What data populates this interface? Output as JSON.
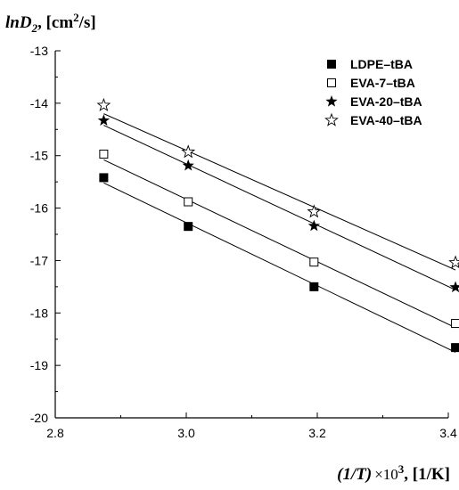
{
  "chart_data": {
    "type": "scatter",
    "ylabel": {
      "base": "lnD",
      "sub": "2",
      "sep": ", [cm",
      "sup": "2",
      "end": "/s]"
    },
    "xlabel": {
      "italic": "(1/T)",
      "times": "×10",
      "sup": "3",
      "end": ", [1/K]"
    },
    "xlim": [
      2.8,
      3.4
    ],
    "ylim": [
      -20,
      -13
    ],
    "x_ticks": [
      "2.8",
      "3.0",
      "3.2",
      "3.4"
    ],
    "y_ticks": [
      "-13",
      "-14",
      "-15",
      "-16",
      "-17",
      "-18",
      "-19",
      "-20"
    ],
    "legend_position": "top-right",
    "series": [
      {
        "name": "LDPE–tBA",
        "marker": "square-filled",
        "x": [
          2.874,
          3.003,
          3.195,
          3.411
        ],
        "y": [
          -15.42,
          -16.35,
          -17.5,
          -18.66
        ],
        "fit": {
          "x": [
            2.874,
            3.411
          ],
          "y": [
            -15.52,
            -18.75
          ]
        }
      },
      {
        "name": "EVA-7–tBA",
        "marker": "square-open",
        "x": [
          2.874,
          3.003,
          3.195,
          3.411
        ],
        "y": [
          -14.97,
          -15.88,
          -17.03,
          -18.2
        ],
        "fit": {
          "x": [
            2.874,
            3.411
          ],
          "y": [
            -15.08,
            -18.28
          ]
        }
      },
      {
        "name": "EVA-20–tBA",
        "marker": "star-filled",
        "x": [
          2.874,
          3.003,
          3.195,
          3.411
        ],
        "y": [
          -14.33,
          -15.19,
          -16.34,
          -17.51
        ],
        "fit": {
          "x": [
            2.874,
            3.411
          ],
          "y": [
            -14.42,
            -17.56
          ]
        }
      },
      {
        "name": "EVA-40–tBA",
        "marker": "star-open",
        "x": [
          2.874,
          3.003,
          3.195,
          3.411
        ],
        "y": [
          -14.04,
          -14.93,
          -16.07,
          -17.04
        ],
        "fit": {
          "x": [
            2.874,
            3.411
          ],
          "y": [
            -14.2,
            -17.18
          ]
        }
      }
    ]
  }
}
